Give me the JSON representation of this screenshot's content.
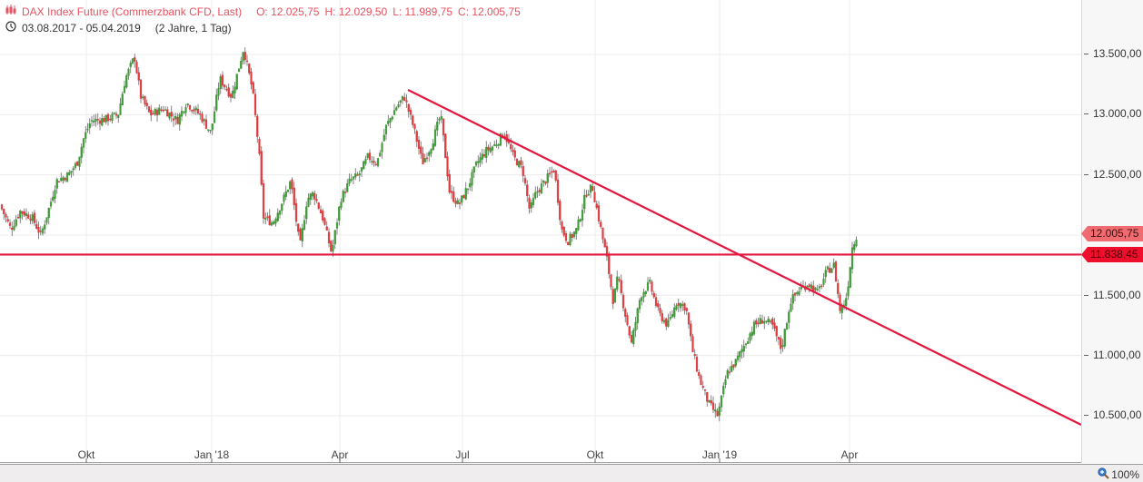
{
  "header": {
    "icon": "candlestick-icon",
    "instrument": "DAX Index Future (Commerzbank CFD, Last)",
    "open_label": "O: 12.025,75",
    "high_label": "H: 12.029,50",
    "low_label": "L: 11.989,75",
    "close_label": "C: 12.005,75",
    "range_icon": "clock-icon",
    "date_range": "03.08.2017 - 05.04.2019",
    "duration": "(2 Jahre, 1 Tag)"
  },
  "footer": {
    "zoom_icon": "zoom-in-icon",
    "zoom_level": "100%"
  },
  "colors": {
    "header_text": "#e8515f",
    "up_candle": "#3f9b37",
    "down_candle": "#e03a3e",
    "trend_line": "#e5173f",
    "last_price_tag": "#f06b70",
    "level_tag": "#ee0f2c",
    "grid": "#ececec"
  },
  "chart_data": {
    "type": "candlestick",
    "title": "DAX Index Future (Commerzbank CFD, Last)",
    "period": "03.08.2017 - 05.04.2019",
    "ohlc_last": {
      "open": 12025.75,
      "high": 12029.5,
      "low": 11989.75,
      "close": 12005.75
    },
    "xlabel": "",
    "ylabel": "",
    "ylim": [
      10250,
      13950
    ],
    "y_ticks": [
      "13.500,00",
      "13.000,00",
      "12.500,00",
      "11.500,00",
      "11.000,00",
      "10.500,00"
    ],
    "y_tick_values": [
      13500,
      13000,
      12500,
      11500,
      11000,
      10500
    ],
    "x_ticks": [
      "Okt",
      "Jan '18",
      "Apr",
      "Jul",
      "Okt",
      "Jan '19",
      "Apr"
    ],
    "grid": true,
    "last_price_label": "12.005,75",
    "horizontal_line": {
      "value": 11838.45,
      "label": "11.838,45"
    },
    "trend_line": {
      "start": {
        "date": "2018-05",
        "value": 13200
      },
      "end": {
        "date": "2019-08",
        "value": 10430
      }
    },
    "approx_closes": [
      {
        "date": "2017-08",
        "value": 12200
      },
      {
        "date": "2017-09",
        "value": 12450
      },
      {
        "date": "2017-10",
        "value": 12950
      },
      {
        "date": "2017-11",
        "value": 13100
      },
      {
        "date": "2017-12",
        "value": 13050
      },
      {
        "date": "2018-01",
        "value": 13450
      },
      {
        "date": "2018-02",
        "value": 12450
      },
      {
        "date": "2018-03",
        "value": 11950
      },
      {
        "date": "2018-04",
        "value": 12550
      },
      {
        "date": "2018-05",
        "value": 13050
      },
      {
        "date": "2018-06",
        "value": 12450
      },
      {
        "date": "2018-07",
        "value": 12700
      },
      {
        "date": "2018-08",
        "value": 12450
      },
      {
        "date": "2018-09",
        "value": 12300
      },
      {
        "date": "2018-10",
        "value": 11450
      },
      {
        "date": "2018-11",
        "value": 11250
      },
      {
        "date": "2018-12",
        "value": 10600
      },
      {
        "date": "2019-01",
        "value": 11150
      },
      {
        "date": "2019-02",
        "value": 11500
      },
      {
        "date": "2019-03",
        "value": 11600
      },
      {
        "date": "2019-04",
        "value": 12005.75
      }
    ]
  }
}
